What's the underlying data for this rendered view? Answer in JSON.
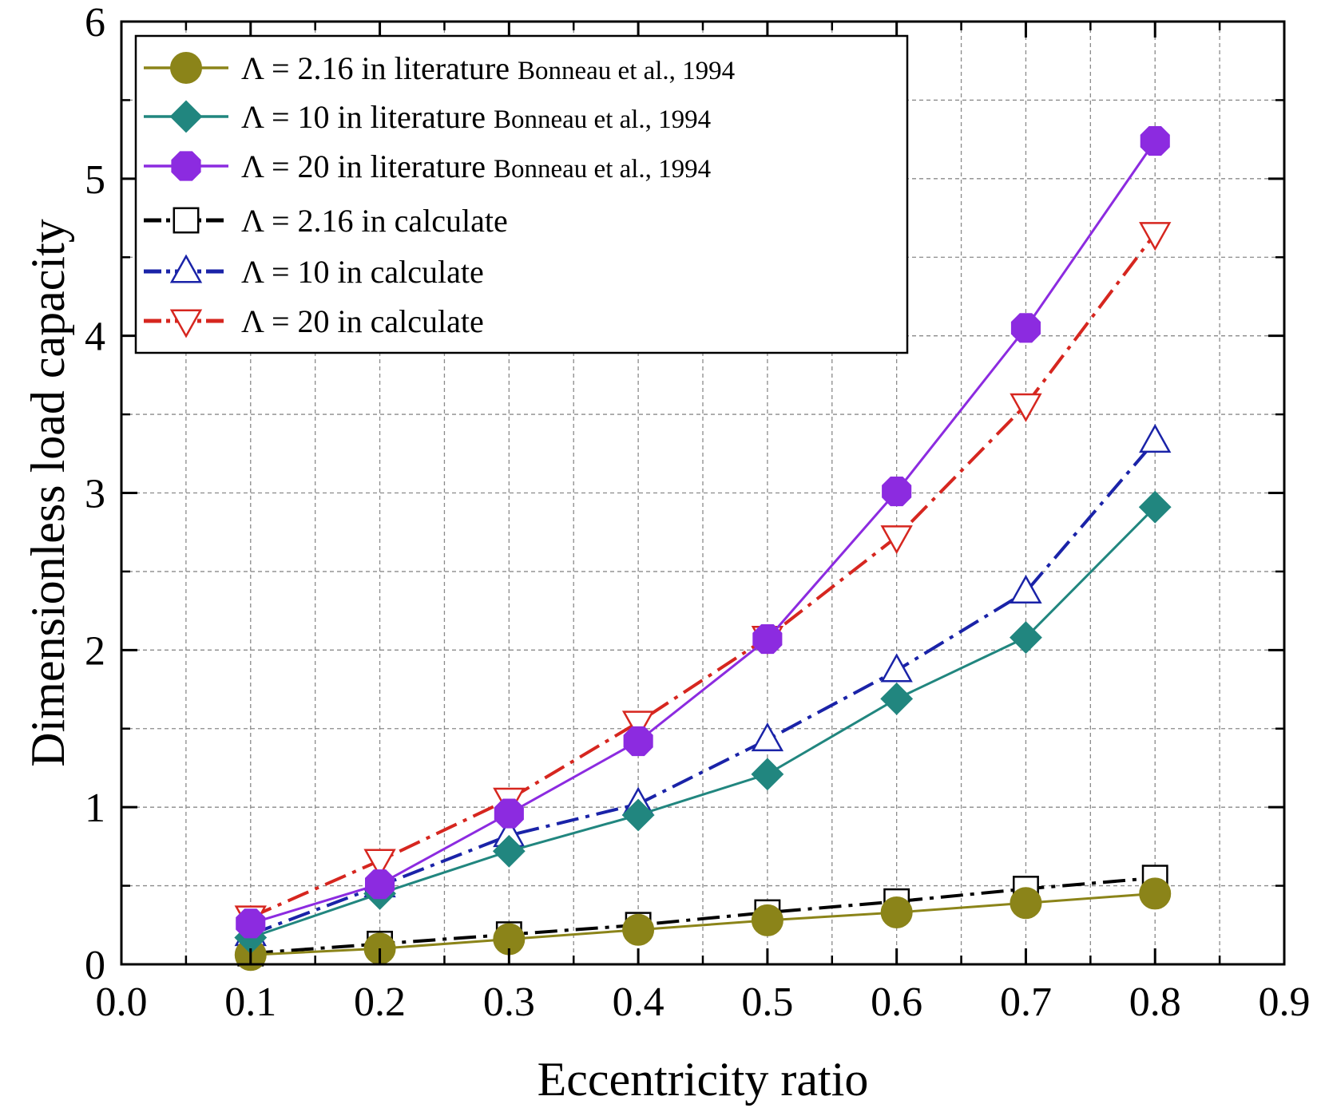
{
  "chart_data": {
    "type": "line",
    "title": "",
    "xlabel": "Eccentricity ratio",
    "ylabel": "Dimensionless load capacity",
    "xlim": [
      0.0,
      0.9
    ],
    "ylim": [
      0,
      6
    ],
    "xticks": [
      "0.0",
      "0.1",
      "0.2",
      "0.3",
      "0.4",
      "0.5",
      "0.6",
      "0.7",
      "0.8",
      "0.9"
    ],
    "yticks": [
      "0",
      "1",
      "2",
      "3",
      "4",
      "5",
      "6"
    ],
    "grid": true,
    "legend_position": "top-left",
    "x": [
      0.1,
      0.2,
      0.3,
      0.4,
      0.5,
      0.6,
      0.7,
      0.8
    ],
    "series": [
      {
        "name": "Λ = 2.16 in literature Bonneau et al., 1994",
        "label_main": "Λ = 2.16 in literature",
        "label_ref": "Bonneau et al., 1994",
        "color": "#8b8419",
        "marker": "circle",
        "marker_filled": true,
        "line_style": "solid",
        "values": [
          0.06,
          0.1,
          0.16,
          0.22,
          0.28,
          0.33,
          0.39,
          0.45
        ]
      },
      {
        "name": "Λ = 10 in literature Bonneau et al., 1994",
        "label_main": "Λ = 10 in literature",
        "label_ref": "Bonneau et al., 1994",
        "color": "#21867f",
        "marker": "diamond",
        "marker_filled": true,
        "line_style": "solid",
        "values": [
          0.17,
          0.45,
          0.72,
          0.95,
          1.21,
          1.69,
          2.08,
          2.91
        ]
      },
      {
        "name": "Λ = 20 in literature Bonneau et al., 1994",
        "label_main": "Λ = 20 in literature",
        "label_ref": "Bonneau et al., 1994",
        "color": "#8c2be0",
        "marker": "octagon",
        "marker_filled": true,
        "line_style": "solid",
        "values": [
          0.26,
          0.51,
          0.96,
          1.42,
          2.07,
          3.01,
          4.05,
          5.24
        ]
      },
      {
        "name": "Λ = 2.16 in calculate",
        "label_main": "Λ = 2.16 in calculate",
        "label_ref": "",
        "color": "#000000",
        "marker": "square",
        "marker_filled": false,
        "line_style": "dashdot",
        "values": [
          0.07,
          0.13,
          0.19,
          0.25,
          0.33,
          0.4,
          0.48,
          0.55
        ]
      },
      {
        "name": "Λ = 10 in calculate",
        "label_main": "Λ = 10 in calculate",
        "label_ref": "",
        "color": "#1a23a8",
        "marker": "triangle-up",
        "marker_filled": false,
        "line_style": "dashdot",
        "values": [
          0.19,
          0.5,
          0.82,
          1.02,
          1.43,
          1.87,
          2.37,
          3.33
        ]
      },
      {
        "name": "Λ = 20 in calculate",
        "label_main": "Λ = 20 in calculate",
        "label_ref": "",
        "color": "#d6261f",
        "marker": "triangle-down",
        "marker_filled": false,
        "line_style": "dashdot",
        "values": [
          0.3,
          0.66,
          1.05,
          1.54,
          2.08,
          2.72,
          3.56,
          4.65
        ]
      }
    ]
  }
}
